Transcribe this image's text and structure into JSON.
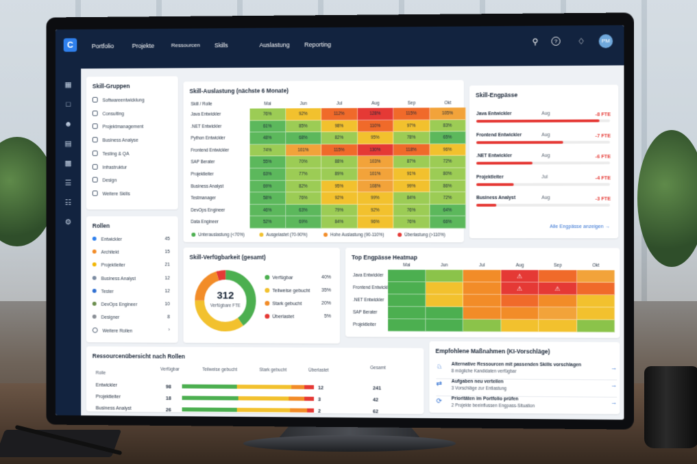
{
  "nav": {
    "items": [
      "Portfolio",
      "Projekte",
      "Ressourcen",
      "Skills",
      "Auslastung",
      "Reporting"
    ],
    "avatar": "PM"
  },
  "skill_groups": {
    "title": "Skill-Gruppen",
    "items": [
      "Softwareentwicklung",
      "Consulting",
      "Projektmanagement",
      "Business Analyse",
      "Testing & QA",
      "Infrastruktur",
      "Design",
      "Weitere Skills"
    ]
  },
  "roles": {
    "title": "Rollen",
    "items": [
      {
        "label": "Entwickler",
        "count": "45",
        "color": "#2f80ed"
      },
      {
        "label": "Architekt",
        "count": "15",
        "color": "#f28c28"
      },
      {
        "label": "Projektleiter",
        "count": "21",
        "color": "#f2b705"
      },
      {
        "label": "Business Analyst",
        "count": "12",
        "color": "#7b8ba1"
      },
      {
        "label": "Tester",
        "count": "12",
        "color": "#2f6fd1"
      },
      {
        "label": "DevOps Engineer",
        "count": "10",
        "color": "#6b8e4e"
      },
      {
        "label": "Designer",
        "count": "8",
        "color": "#8a8f96"
      }
    ],
    "more": "Weitere Rollen",
    "more_arrow": "›"
  },
  "utilization": {
    "title": "Skill-Auslastung (nächste 6 Monate)",
    "corner": "Skill / Rolle",
    "months": [
      "Mai",
      "Jun",
      "Jul",
      "Aug",
      "Sep",
      "Okt"
    ],
    "rows": [
      {
        "label": "Java Entwickler",
        "values": [
          "76%",
          "92%",
          "112%",
          "128%",
          "115%",
          "105%"
        ]
      },
      {
        "label": ".NET Entwickler",
        "values": [
          "61%",
          "85%",
          "98%",
          "110%",
          "97%",
          "83%"
        ]
      },
      {
        "label": "Python Entwickler",
        "values": [
          "48%",
          "68%",
          "82%",
          "95%",
          "78%",
          "65%"
        ]
      },
      {
        "label": "Frontend Entwickler",
        "values": [
          "74%",
          "101%",
          "115%",
          "130%",
          "118%",
          "96%"
        ]
      },
      {
        "label": "SAP Berater",
        "values": [
          "55%",
          "70%",
          "88%",
          "103%",
          "87%",
          "72%"
        ]
      },
      {
        "label": "Projektleiter",
        "values": [
          "63%",
          "77%",
          "89%",
          "101%",
          "91%",
          "80%"
        ]
      },
      {
        "label": "Business Analyst",
        "values": [
          "69%",
          "82%",
          "95%",
          "108%",
          "99%",
          "86%"
        ]
      },
      {
        "label": "Testmanager",
        "values": [
          "58%",
          "76%",
          "92%",
          "99%",
          "84%",
          "72%"
        ]
      },
      {
        "label": "DevOps Engineer",
        "values": [
          "46%",
          "63%",
          "79%",
          "92%",
          "76%",
          "64%"
        ]
      },
      {
        "label": "Data Engineer",
        "values": [
          "52%",
          "69%",
          "84%",
          "96%",
          "76%",
          "66%"
        ]
      }
    ],
    "legend": [
      {
        "label": "Unterauslastung (<70%)",
        "color": "#4caf50"
      },
      {
        "label": "Ausgelastet (70-90%)",
        "color": "#f2c12e"
      },
      {
        "label": "Hohe Auslastung (90-110%)",
        "color": "#f28c28"
      },
      {
        "label": "Überlastung (>110%)",
        "color": "#e53935"
      }
    ]
  },
  "bottlenecks": {
    "title": "Skill-Engpässe",
    "items": [
      {
        "role": "Java Entwickler",
        "month": "Aug",
        "value": "-8 FTE",
        "level": 0.92
      },
      {
        "role": "Frontend Entwickler",
        "month": "Aug",
        "value": "-7 FTE",
        "level": 0.65
      },
      {
        "role": ".NET Entwickler",
        "month": "Aug",
        "value": "-6 FTE",
        "level": 0.42
      },
      {
        "role": "Projektleiter",
        "month": "Jul",
        "value": "-4 FTE",
        "level": 0.28
      },
      {
        "role": "Business Analyst",
        "month": "Aug",
        "value": "-3 FTE",
        "level": 0.15
      }
    ],
    "link": "Alle Engpässe anzeigen",
    "link_arrow": "→"
  },
  "availability": {
    "title": "Skill-Verfügbarkeit (gesamt)",
    "total": "312",
    "total_label": "Verfügbare FTE",
    "segments": [
      {
        "label": "Verfügbar",
        "pct": "40%",
        "value": 40,
        "color": "#4caf50"
      },
      {
        "label": "Teilweise gebucht",
        "pct": "35%",
        "value": 35,
        "color": "#f2c12e"
      },
      {
        "label": "Stark gebucht",
        "pct": "20%",
        "value": 20,
        "color": "#f28c28"
      },
      {
        "label": "Überlastet",
        "pct": "5%",
        "value": 5,
        "color": "#e53935"
      }
    ]
  },
  "top_heatmap": {
    "title": "Top Engpässe Heatmap",
    "months": [
      "Mai",
      "Jun",
      "Jul",
      "Aug",
      "Sep",
      "Okt"
    ],
    "rows": [
      {
        "label": "Java Entwickler",
        "colors": [
          "#4caf50",
          "#8bc34a",
          "#f28c28",
          "#e53935",
          "#f06a2a",
          "#f2a33a"
        ],
        "warn": [
          false,
          false,
          false,
          true,
          false,
          false
        ]
      },
      {
        "label": "Frontend Entwickler",
        "colors": [
          "#4caf50",
          "#f2c12e",
          "#f28c28",
          "#e53935",
          "#e53935",
          "#f06a2a"
        ],
        "warn": [
          false,
          false,
          false,
          true,
          true,
          false
        ]
      },
      {
        "label": ".NET Entwickler",
        "colors": [
          "#4caf50",
          "#f2c12e",
          "#f28c28",
          "#f06a2a",
          "#f28c28",
          "#f2c12e"
        ],
        "warn": [
          false,
          false,
          false,
          false,
          false,
          false
        ]
      },
      {
        "label": "SAP Berater",
        "colors": [
          "#4caf50",
          "#4caf50",
          "#f28c28",
          "#f28c28",
          "#f2a33a",
          "#f2c12e"
        ],
        "warn": [
          false,
          false,
          false,
          false,
          false,
          false
        ]
      },
      {
        "label": "Projektleiter",
        "colors": [
          "#4caf50",
          "#4caf50",
          "#8bc34a",
          "#f2c12e",
          "#f2c12e",
          "#8bc34a"
        ],
        "warn": [
          false,
          false,
          false,
          false,
          false,
          false
        ]
      }
    ],
    "warn_glyph": "⚠"
  },
  "resource_overview": {
    "title": "Ressourcenübersicht nach Rollen",
    "headers": [
      "Rolle",
      "Verfügbar",
      "Teilweise gebucht",
      "Stark gebucht",
      "Überlastet",
      "Gesamt"
    ],
    "rows": [
      {
        "role": "Entwickler",
        "available": "98",
        "overloaded": "12",
        "total": "241",
        "bars": [
          0.42,
          0.41,
          0.1,
          0.07
        ]
      },
      {
        "role": "Projektleiter",
        "available": "18",
        "overloaded": "3",
        "total": "42",
        "bars": [
          0.43,
          0.38,
          0.12,
          0.07
        ]
      },
      {
        "role": "Business Analyst",
        "available": "26",
        "overloaded": "2",
        "total": "62",
        "bars": [
          0.42,
          0.4,
          0.13,
          0.05
        ]
      }
    ],
    "bar_colors": [
      "#4caf50",
      "#f2c12e",
      "#f28c28",
      "#e53935"
    ]
  },
  "actions": {
    "title": "Empfohlene Maßnahmen (KI-Vorschläge)",
    "items": [
      {
        "icon": "♘",
        "title": "Alternative Ressourcen mit passenden Skills vorschlagen",
        "sub": "8 mögliche Kandidaten verfügbar"
      },
      {
        "icon": "⇄",
        "title": "Aufgaben neu verteilen",
        "sub": "3 Vorschläge zur Entlastung"
      },
      {
        "icon": "⟳",
        "title": "Prioritäten im Portfolio prüfen",
        "sub": "2 Projekte beeinflussen Engpass-Situation"
      }
    ],
    "arrow": "→"
  },
  "icons": {
    "search": "search-icon",
    "help": "help-icon",
    "bell": "bell-icon",
    "rail": [
      "dashboard-icon",
      "folder-icon",
      "users-icon",
      "chart-icon",
      "calendar-icon",
      "list-icon",
      "tasks-icon",
      "settings-icon"
    ]
  }
}
